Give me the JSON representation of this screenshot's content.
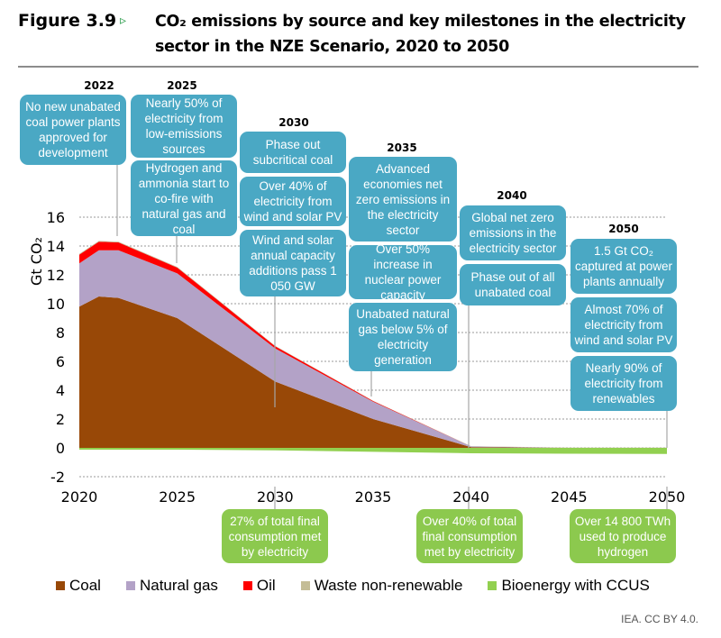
{
  "figure": {
    "label": "Figure 3.9",
    "arrow": "▹",
    "title": "CO₂ emissions by source and key milestones in the electricity sector in the NZE Scenario, 2020 to 2050",
    "credit": "IEA. CC BY 4.0."
  },
  "milestones": {
    "years": {
      "y2022": "2022",
      "y2025": "2025",
      "y2030": "2030",
      "y2035": "2035",
      "y2040": "2040",
      "y2050": "2050"
    },
    "blue": [
      {
        "year": "2022",
        "text": "No new unabated coal power plants approved for development"
      },
      {
        "year": "2025",
        "text": "Nearly 50% of electricity from low-emissions sources"
      },
      {
        "year": "2025",
        "text": "Hydrogen and ammonia start to co-fire with natural gas and coal"
      },
      {
        "year": "2030",
        "text": "Phase out subcritical coal"
      },
      {
        "year": "2030",
        "text": "Over 40% of electricity from wind and solar PV"
      },
      {
        "year": "2030",
        "text": "Wind and solar annual capacity additions pass 1 050 GW"
      },
      {
        "year": "2035",
        "text": "Advanced economies net zero emissions in the electricity sector"
      },
      {
        "year": "2035",
        "text": "Over 50% increase in nuclear power capacity"
      },
      {
        "year": "2035",
        "text": "Unabated natural gas below 5% of electricity generation"
      },
      {
        "year": "2040",
        "text": "Global net zero emissions in the electricity sector"
      },
      {
        "year": "2040",
        "text": "Phase out of all unabated coal"
      },
      {
        "year": "2050",
        "text": "1.5 Gt CO₂ captured at power plants annually"
      },
      {
        "year": "2050",
        "text": "Almost 70% of electricity from wind and solar PV"
      },
      {
        "year": "2050",
        "text": "Nearly 90% of electricity from renewables"
      }
    ],
    "green": [
      {
        "year": "2030",
        "text": "27% of total final consumption met by electricity"
      },
      {
        "year": "2040",
        "text": "Over 40% of total final consumption met by electricity"
      },
      {
        "year": "2050",
        "text": "Over 14 800 TWh used to produce hydrogen"
      }
    ]
  },
  "legend": [
    {
      "label": "Coal",
      "color": "#984807"
    },
    {
      "label": "Natural gas",
      "color": "#b3a2c7"
    },
    {
      "label": "Oil",
      "color": "#ff0000"
    },
    {
      "label": "Waste non-renewable",
      "color": "#c4bd97"
    },
    {
      "label": "Bioenergy with CCUS",
      "color": "#92d050"
    }
  ],
  "chart_data": {
    "type": "area",
    "title": "CO₂ emissions by source and key milestones in the electricity sector in the NZE Scenario, 2020 to 2050",
    "xlabel": "",
    "ylabel": "Gt CO₂",
    "xlim": [
      2020,
      2050
    ],
    "ylim": [
      -2,
      16
    ],
    "x_ticks": [
      "2020",
      "2025",
      "2030",
      "2035",
      "2040",
      "2045",
      "2050"
    ],
    "y_ticks": [
      "-2",
      "0",
      "2",
      "4",
      "6",
      "8",
      "10",
      "12",
      "14",
      "16"
    ],
    "grid": "horizontal dotted",
    "legend_position": "bottom",
    "x": [
      2020,
      2021,
      2022,
      2025,
      2030,
      2035,
      2040,
      2045,
      2050
    ],
    "series": [
      {
        "name": "Coal",
        "color": "#984807",
        "values": [
          9.8,
          10.5,
          10.4,
          9.0,
          4.6,
          2.0,
          0.05,
          0.0,
          0.0
        ]
      },
      {
        "name": "Natural gas",
        "color": "#b3a2c7",
        "values": [
          3.0,
          3.2,
          3.3,
          3.1,
          2.3,
          1.2,
          0.05,
          0.0,
          0.0
        ]
      },
      {
        "name": "Oil",
        "color": "#ff0000",
        "values": [
          0.6,
          0.6,
          0.55,
          0.4,
          0.15,
          0.05,
          0.0,
          0.0,
          0.0
        ]
      },
      {
        "name": "Waste non-renewable",
        "color": "#c4bd97",
        "values": [
          0.05,
          0.05,
          0.05,
          0.05,
          0.03,
          0.02,
          0.02,
          0.02,
          0.02
        ]
      },
      {
        "name": "Bioenergy with CCUS",
        "color": "#92d050",
        "values": [
          0.0,
          0.0,
          0.0,
          0.0,
          -0.05,
          -0.15,
          -0.25,
          -0.28,
          -0.3
        ]
      }
    ]
  }
}
